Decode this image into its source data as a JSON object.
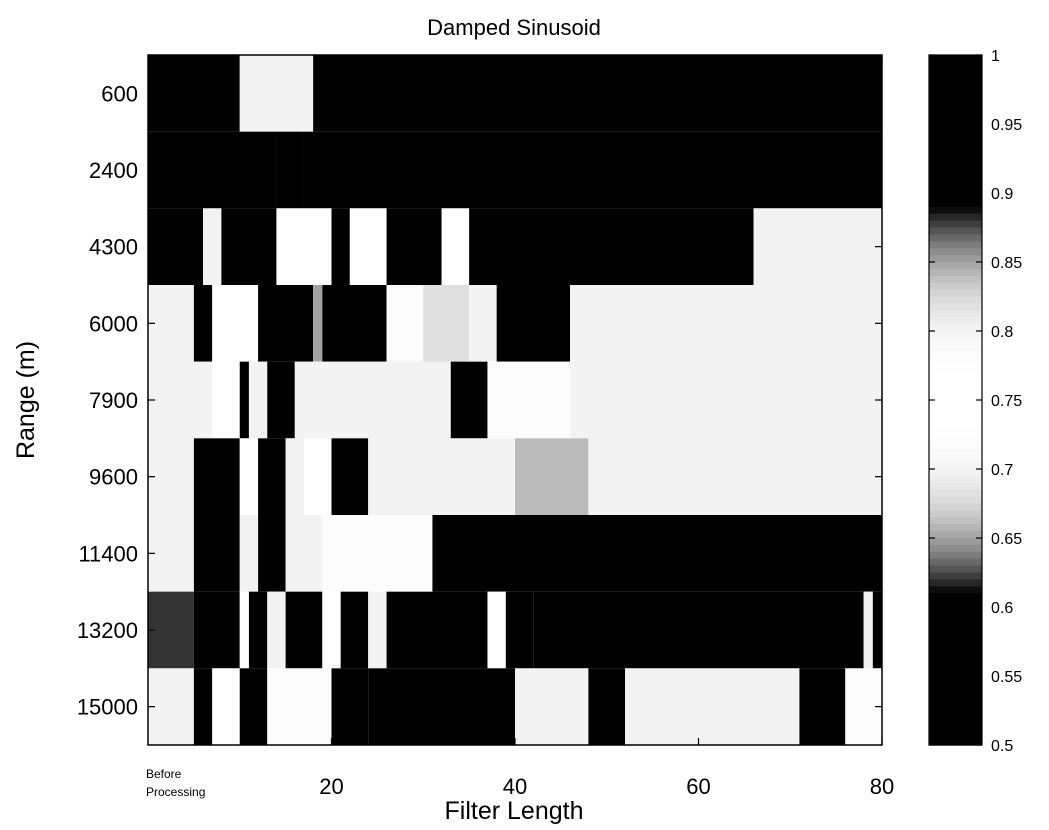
{
  "chart_data": {
    "type": "heatmap",
    "title": "Damped Sinusoid",
    "xlabel": "Filter Length",
    "ylabel": "Range (m)",
    "x_ticks": [
      "20",
      "40",
      "60",
      "80"
    ],
    "x_first_label": [
      "Before",
      "Processing"
    ],
    "x_range": [
      0,
      80
    ],
    "y_ticks": [
      "600",
      "2400",
      "4300",
      "6000",
      "7900",
      "9600",
      "11400",
      "13200",
      "15000"
    ],
    "colorbar": {
      "min": 0.5,
      "max": 1,
      "ticks": [
        "1",
        "0.95",
        "0.9",
        "0.85",
        "0.8",
        "0.75",
        "0.7",
        "0.65",
        "0.6",
        "0.55",
        "0.5"
      ]
    },
    "rows": [
      {
        "range": "600",
        "cells": [
          [
            0,
            10,
            1.0
          ],
          [
            10,
            18,
            0.8
          ],
          [
            18,
            80,
            1.0
          ]
        ]
      },
      {
        "range": "2400",
        "cells": [
          [
            0,
            14,
            1.0
          ],
          [
            14,
            17,
            0.92
          ],
          [
            17,
            80,
            1.0
          ]
        ]
      },
      {
        "range": "4300",
        "cells": [
          [
            0,
            6,
            1.0
          ],
          [
            6,
            8,
            0.8
          ],
          [
            8,
            14,
            1.0
          ],
          [
            14,
            20,
            0.74
          ],
          [
            20,
            22,
            1.0
          ],
          [
            22,
            26,
            0.74
          ],
          [
            26,
            32,
            1.0
          ],
          [
            32,
            35,
            0.76
          ],
          [
            35,
            66,
            1.0
          ],
          [
            66,
            80,
            0.8
          ]
        ]
      },
      {
        "range": "6000",
        "cells": [
          [
            0,
            5,
            0.8
          ],
          [
            5,
            7,
            1.0
          ],
          [
            7,
            12,
            0.76
          ],
          [
            12,
            18,
            1.0
          ],
          [
            18,
            19,
            0.85
          ],
          [
            19,
            26,
            1.0
          ],
          [
            26,
            30,
            0.72
          ],
          [
            30,
            35,
            0.68
          ],
          [
            35,
            38,
            0.7
          ],
          [
            38,
            46,
            1.0
          ],
          [
            46,
            80,
            0.8
          ]
        ]
      },
      {
        "range": "7900",
        "cells": [
          [
            0,
            7,
            0.8
          ],
          [
            7,
            10,
            0.74
          ],
          [
            10,
            11,
            1.0
          ],
          [
            11,
            13,
            0.8
          ],
          [
            13,
            16,
            1.0
          ],
          [
            16,
            33,
            0.8
          ],
          [
            33,
            37,
            1.0
          ],
          [
            37,
            46,
            0.72
          ],
          [
            46,
            80,
            0.8
          ]
        ]
      },
      {
        "range": "9600",
        "cells": [
          [
            0,
            5,
            0.8
          ],
          [
            5,
            10,
            1.0
          ],
          [
            10,
            12,
            0.76
          ],
          [
            12,
            15,
            1.0
          ],
          [
            15,
            17,
            0.8
          ],
          [
            17,
            20,
            0.76
          ],
          [
            20,
            24,
            1.0
          ],
          [
            24,
            40,
            0.8
          ],
          [
            40,
            48,
            0.66
          ],
          [
            48,
            80,
            0.8
          ]
        ]
      },
      {
        "range": "11400",
        "cells": [
          [
            0,
            5,
            0.8
          ],
          [
            5,
            10,
            1.0
          ],
          [
            10,
            12,
            0.8
          ],
          [
            12,
            15,
            1.0
          ],
          [
            15,
            19,
            0.8
          ],
          [
            19,
            31,
            0.72
          ],
          [
            31,
            80,
            1.0
          ]
        ]
      },
      {
        "range": "13200",
        "cells": [
          [
            0,
            5,
            0.62
          ],
          [
            5,
            10,
            1.0
          ],
          [
            10,
            11,
            0.76
          ],
          [
            11,
            13,
            1.0
          ],
          [
            13,
            15,
            0.8
          ],
          [
            15,
            19,
            1.0
          ],
          [
            19,
            21,
            0.76
          ],
          [
            21,
            24,
            1.0
          ],
          [
            24,
            26,
            0.8
          ],
          [
            26,
            37,
            1.0
          ],
          [
            37,
            39,
            0.76
          ],
          [
            39,
            42,
            1.0
          ],
          [
            42,
            78,
            1.0
          ],
          [
            78,
            79,
            0.8
          ],
          [
            79,
            80,
            1.0
          ]
        ]
      },
      {
        "range": "15000",
        "cells": [
          [
            0,
            5,
            0.8
          ],
          [
            5,
            7,
            1.0
          ],
          [
            7,
            10,
            0.76
          ],
          [
            10,
            13,
            1.0
          ],
          [
            13,
            20,
            0.78
          ],
          [
            20,
            24,
            1.0
          ],
          [
            24,
            40,
            1.0
          ],
          [
            40,
            48,
            0.8
          ],
          [
            48,
            52,
            1.0
          ],
          [
            52,
            62,
            0.8
          ],
          [
            62,
            66,
            0.7
          ],
          [
            66,
            71,
            0.8
          ],
          [
            71,
            76,
            1.0
          ],
          [
            76,
            80,
            0.72
          ]
        ]
      }
    ]
  }
}
